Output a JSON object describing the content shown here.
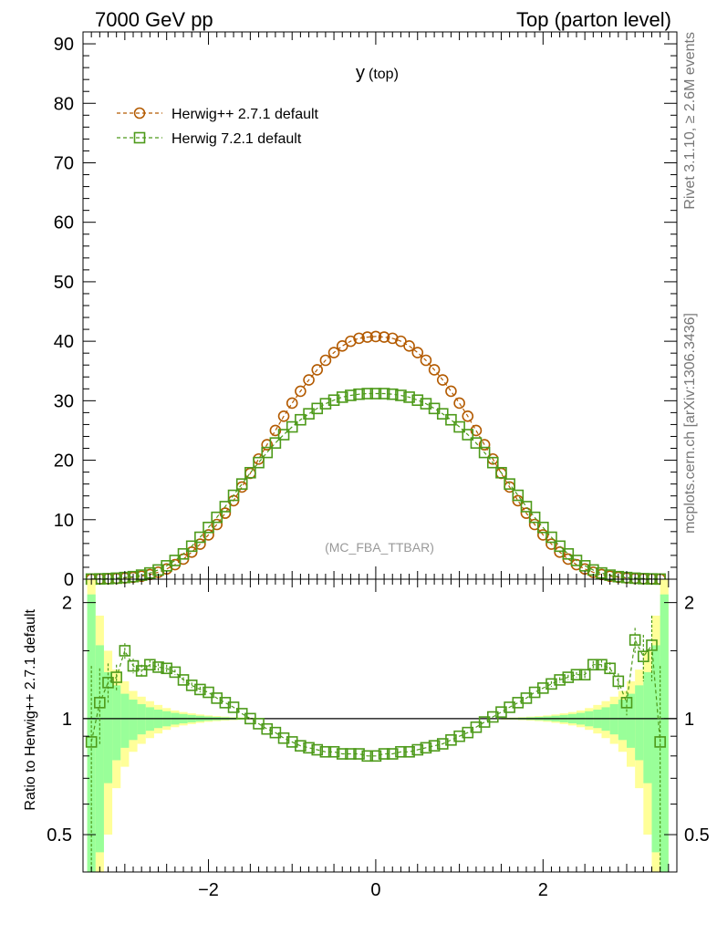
{
  "header": {
    "left": "7000 GeV pp",
    "right": "Top (parton level)"
  },
  "side_labels": {
    "rivet": "Rivet 3.1.10, ≥ 2.6M events",
    "mcplots": "mcplots.cern.ch [arXiv:1306.3436]"
  },
  "chart_data": [
    {
      "type": "line",
      "panel": "main",
      "title": "y (top)",
      "title_main": "y",
      "title_sub": "(top)",
      "analysis_tag": "(MC_FBA_TTBAR)",
      "ylim": [
        0,
        92
      ],
      "yticks": [
        0,
        10,
        20,
        30,
        40,
        50,
        60,
        70,
        80,
        90
      ],
      "xlim": [
        -3.5,
        3.6
      ],
      "xticks": [
        -2,
        0,
        2
      ],
      "grid": false,
      "legend_position": "top-left",
      "series": [
        {
          "name": "Herwig++ 2.7.1 default",
          "color": "#b35a00",
          "marker": "open-circle",
          "line": "dashed",
          "x": [
            -3.4,
            -3.3,
            -3.2,
            -3.1,
            -3.0,
            -2.9,
            -2.8,
            -2.7,
            -2.6,
            -2.5,
            -2.4,
            -2.3,
            -2.2,
            -2.1,
            -2.0,
            -1.9,
            -1.8,
            -1.7,
            -1.6,
            -1.5,
            -1.4,
            -1.3,
            -1.2,
            -1.1,
            -1.0,
            -0.9,
            -0.8,
            -0.7,
            -0.6,
            -0.5,
            -0.4,
            -0.3,
            -0.2,
            -0.1,
            0.0,
            0.1,
            0.2,
            0.3,
            0.4,
            0.5,
            0.6,
            0.7,
            0.8,
            0.9,
            1.0,
            1.1,
            1.2,
            1.3,
            1.4,
            1.5,
            1.6,
            1.7,
            1.8,
            1.9,
            2.0,
            2.1,
            2.2,
            2.3,
            2.4,
            2.5,
            2.6,
            2.7,
            2.8,
            2.9,
            3.0,
            3.1,
            3.2,
            3.3,
            3.4
          ],
          "values": [
            0.02,
            0.04,
            0.07,
            0.12,
            0.2,
            0.32,
            0.5,
            0.78,
            1.17,
            1.71,
            2.45,
            3.38,
            4.55,
            5.9,
            7.45,
            9.2,
            11.1,
            13.2,
            15.5,
            17.8,
            20.2,
            22.6,
            25.0,
            27.4,
            29.6,
            31.6,
            33.5,
            35.2,
            36.8,
            38.1,
            39.2,
            40.0,
            40.5,
            40.7,
            40.8,
            40.7,
            40.5,
            40.0,
            39.2,
            38.1,
            36.8,
            35.2,
            33.5,
            31.6,
            29.6,
            27.4,
            25.0,
            22.6,
            20.2,
            17.8,
            15.5,
            13.2,
            11.1,
            9.2,
            7.45,
            5.9,
            4.55,
            3.38,
            2.45,
            1.71,
            1.17,
            0.78,
            0.5,
            0.32,
            0.2,
            0.12,
            0.07,
            0.04,
            0.02
          ]
        },
        {
          "name": "Herwig 7.2.1 default",
          "color": "#4d9a1a",
          "marker": "open-square",
          "line": "dashed",
          "x": [
            -3.4,
            -3.3,
            -3.2,
            -3.1,
            -3.0,
            -2.9,
            -2.8,
            -2.7,
            -2.6,
            -2.5,
            -2.4,
            -2.3,
            -2.2,
            -2.1,
            -2.0,
            -1.9,
            -1.8,
            -1.7,
            -1.6,
            -1.5,
            -1.4,
            -1.3,
            -1.2,
            -1.1,
            -1.0,
            -0.9,
            -0.8,
            -0.7,
            -0.6,
            -0.5,
            -0.4,
            -0.3,
            -0.2,
            -0.1,
            0.0,
            0.1,
            0.2,
            0.3,
            0.4,
            0.5,
            0.6,
            0.7,
            0.8,
            0.9,
            1.0,
            1.1,
            1.2,
            1.3,
            1.4,
            1.5,
            1.6,
            1.7,
            1.8,
            1.9,
            2.0,
            2.1,
            2.2,
            2.3,
            2.4,
            2.5,
            2.6,
            2.7,
            2.8,
            2.9,
            3.0,
            3.1,
            3.2,
            3.3,
            3.4
          ],
          "values": [
            0.02,
            0.05,
            0.09,
            0.17,
            0.28,
            0.43,
            0.68,
            1.05,
            1.55,
            2.25,
            3.15,
            4.25,
            5.55,
            7.05,
            8.7,
            10.4,
            12.2,
            14.1,
            16.0,
            17.9,
            19.6,
            21.3,
            22.9,
            24.3,
            25.6,
            26.8,
            27.8,
            28.7,
            29.5,
            30.1,
            30.6,
            30.9,
            31.1,
            31.2,
            31.2,
            31.2,
            31.1,
            30.9,
            30.6,
            30.1,
            29.5,
            28.7,
            27.8,
            26.8,
            25.6,
            24.3,
            22.9,
            21.3,
            19.6,
            17.9,
            16.0,
            14.1,
            12.2,
            10.4,
            8.7,
            7.05,
            5.55,
            4.25,
            3.15,
            2.25,
            1.55,
            1.05,
            0.68,
            0.43,
            0.28,
            0.17,
            0.09,
            0.05,
            0.02
          ]
        }
      ]
    },
    {
      "type": "line",
      "panel": "ratio",
      "ylabel": "Ratio to Herwig++ 2.7.1 default",
      "ylim": [
        0.4,
        2.3
      ],
      "ytick_labels": [
        "0.5",
        "1",
        "2"
      ],
      "yticks": [
        0.5,
        1,
        2
      ],
      "xlim": [
        -3.5,
        3.6
      ],
      "xticks": [
        -2,
        0,
        2
      ],
      "xtick_labels": [
        "−2",
        "0",
        "2"
      ],
      "reference_line": 1,
      "series": [
        {
          "name": "Herwig 7.2.1 default",
          "color": "#4d9a1a",
          "marker": "open-square",
          "line": "dashed",
          "x": [
            -3.4,
            -3.3,
            -3.2,
            -3.1,
            -3.0,
            -2.9,
            -2.8,
            -2.7,
            -2.6,
            -2.5,
            -2.4,
            -2.3,
            -2.2,
            -2.1,
            -2.0,
            -1.9,
            -1.8,
            -1.7,
            -1.6,
            -1.5,
            -1.4,
            -1.3,
            -1.2,
            -1.1,
            -1.0,
            -0.9,
            -0.8,
            -0.7,
            -0.6,
            -0.5,
            -0.4,
            -0.3,
            -0.2,
            -0.1,
            0.0,
            0.1,
            0.2,
            0.3,
            0.4,
            0.5,
            0.6,
            0.7,
            0.8,
            0.9,
            1.0,
            1.1,
            1.2,
            1.3,
            1.4,
            1.5,
            1.6,
            1.7,
            1.8,
            1.9,
            2.0,
            2.1,
            2.2,
            2.3,
            2.4,
            2.5,
            2.6,
            2.7,
            2.8,
            2.9,
            3.0,
            3.1,
            3.2,
            3.3,
            3.4
          ],
          "values": [
            0.87,
            1.1,
            1.24,
            1.28,
            1.5,
            1.37,
            1.33,
            1.38,
            1.36,
            1.35,
            1.32,
            1.26,
            1.22,
            1.19,
            1.17,
            1.13,
            1.1,
            1.07,
            1.03,
            1.0,
            0.97,
            0.94,
            0.92,
            0.89,
            0.87,
            0.85,
            0.84,
            0.83,
            0.82,
            0.82,
            0.81,
            0.81,
            0.81,
            0.8,
            0.8,
            0.81,
            0.81,
            0.82,
            0.82,
            0.83,
            0.84,
            0.85,
            0.86,
            0.88,
            0.9,
            0.92,
            0.95,
            0.98,
            1.01,
            1.04,
            1.07,
            1.1,
            1.13,
            1.17,
            1.2,
            1.23,
            1.26,
            1.28,
            1.3,
            1.3,
            1.38,
            1.38,
            1.35,
            1.25,
            1.1,
            1.6,
            1.45,
            1.55,
            0.87
          ],
          "errors": [
            0.5,
            0.25,
            0.15,
            0.1,
            0.07,
            0.06,
            0.05,
            0.04,
            0.03,
            0.03,
            0.02,
            0.02,
            0.02,
            0.02,
            0.01,
            0.01,
            0.01,
            0.01,
            0.01,
            0.01,
            0.01,
            0.01,
            0.01,
            0.01,
            0.01,
            0.01,
            0.01,
            0.01,
            0.01,
            0.01,
            0.01,
            0.01,
            0.01,
            0.01,
            0.01,
            0.01,
            0.01,
            0.01,
            0.01,
            0.01,
            0.01,
            0.01,
            0.01,
            0.01,
            0.01,
            0.01,
            0.01,
            0.01,
            0.01,
            0.01,
            0.01,
            0.01,
            0.01,
            0.01,
            0.01,
            0.02,
            0.02,
            0.02,
            0.02,
            0.03,
            0.03,
            0.04,
            0.05,
            0.06,
            0.08,
            0.12,
            0.2,
            0.3,
            0.5
          ]
        }
      ],
      "bands": {
        "x_edges": [
          -3.45,
          -3.35,
          -3.25,
          -3.15,
          -3.05,
          -2.95,
          -2.85,
          -2.75,
          -2.65,
          -2.55,
          -2.45,
          -2.35,
          -2.25,
          -2.15,
          -2.05,
          -1.95,
          -1.85,
          -1.75,
          -1.65,
          -1.55,
          -1.45
        ],
        "green_half_widths": [
          1.1,
          0.55,
          0.32,
          0.22,
          0.16,
          0.12,
          0.09,
          0.07,
          0.055,
          0.045,
          0.035,
          0.028,
          0.022,
          0.017,
          0.013,
          0.01,
          0.008,
          0.006,
          0.005,
          0.004
        ],
        "yellow_half_widths": [
          1.4,
          0.85,
          0.5,
          0.34,
          0.25,
          0.18,
          0.14,
          0.11,
          0.085,
          0.065,
          0.05,
          0.04,
          0.032,
          0.025,
          0.019,
          0.015,
          0.012,
          0.009,
          0.007,
          0.006
        ],
        "green_color": "#99ff99",
        "yellow_color": "#ffff99"
      }
    }
  ]
}
